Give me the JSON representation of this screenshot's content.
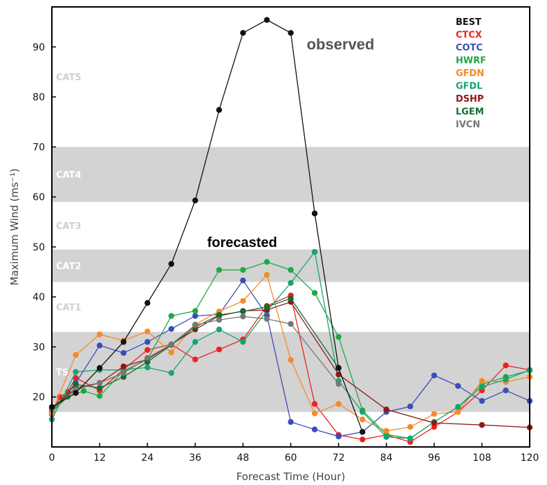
{
  "chart_data": {
    "type": "line",
    "xlabel": "Forecast Time (Hour)",
    "ylabel": "Maximum Wind (ms⁻¹)",
    "xlim": [
      0,
      120
    ],
    "ylim": [
      10,
      98
    ],
    "x_ticks": [
      0,
      12,
      24,
      36,
      48,
      60,
      72,
      84,
      96,
      108,
      120
    ],
    "y_ticks": [
      20,
      30,
      40,
      50,
      60,
      70,
      80,
      90
    ],
    "grid": false,
    "legend_position": "top-right",
    "bands": [
      {
        "label": "TS",
        "ymin": 17,
        "ymax": 33,
        "shaded": true
      },
      {
        "label": "CAT1",
        "ymin": 33,
        "ymax": 43,
        "shaded": false
      },
      {
        "label": "CAT2",
        "ymin": 43,
        "ymax": 49.5,
        "shaded": true
      },
      {
        "label": "CAT3",
        "ymin": 49.5,
        "ymax": 59,
        "shaded": false
      },
      {
        "label": "CAT4",
        "ymin": 59,
        "ymax": 70,
        "shaded": true
      },
      {
        "label": "CAT5",
        "ymin": 70,
        "ymax": 98,
        "shaded": false
      }
    ],
    "band_colors": {
      "shaded": "#d3d3d3",
      "label_on_shade": "#ffffff",
      "label_on_white": "#d0d0d0"
    },
    "annotations": [
      {
        "text": "observed",
        "x": 64,
        "y": 89.5,
        "size": 22,
        "color": "#555555"
      },
      {
        "text": "forecasted",
        "x": 39,
        "y": 50,
        "size": 20,
        "color": "#000000"
      }
    ],
    "series": [
      {
        "name": "BEST",
        "color": "#111111",
        "x": [
          0,
          6,
          12,
          18,
          24,
          30,
          36,
          42,
          48,
          54,
          60,
          66,
          72,
          78
        ],
        "y": [
          18,
          20.8,
          25.8,
          31,
          38.8,
          46.6,
          59.3,
          77.4,
          92.8,
          95.4,
          92.8,
          56.7,
          25.8,
          13
        ]
      },
      {
        "name": "CTCX",
        "color": "#ee2222",
        "x": [
          0,
          2,
          4,
          6,
          12,
          18,
          24,
          30,
          36,
          42,
          48,
          54,
          60,
          66,
          72,
          78,
          84,
          90,
          96,
          102,
          108,
          114,
          120
        ],
        "y": [
          16.5,
          20,
          21,
          23.8,
          21.3,
          25.5,
          29.4,
          30.5,
          27.5,
          29.5,
          31.5,
          38.2,
          40.3,
          18.6,
          12.4,
          11.5,
          12.4,
          11,
          14,
          17,
          21.3,
          26.3,
          25.4
        ]
      },
      {
        "name": "COTC",
        "color": "#3b4db8",
        "x": [
          0,
          6,
          12,
          18,
          24,
          30,
          36,
          42,
          48,
          54,
          60,
          66,
          72,
          78,
          84,
          90,
          96,
          102,
          108,
          114,
          120
        ],
        "y": [
          17,
          22.8,
          30.3,
          28.8,
          31,
          33.6,
          36.2,
          36.5,
          43.3,
          36.3,
          15,
          13.5,
          12.1,
          13,
          17,
          18.1,
          24.3,
          22.2,
          19.2,
          21.3,
          19.2
        ]
      },
      {
        "name": "HWRF",
        "color": "#1fa846",
        "x": [
          0,
          4,
          8,
          12,
          18,
          24,
          30,
          36,
          42,
          48,
          54,
          60,
          66,
          72,
          78,
          84,
          90,
          96,
          102,
          108,
          114,
          120
        ],
        "y": [
          17,
          20,
          21.2,
          20.2,
          25.2,
          27.5,
          36.2,
          37.2,
          45.4,
          45.4,
          47,
          45.4,
          40.8,
          32,
          17.3,
          12.5,
          11.7,
          15,
          18,
          22.5,
          24,
          25.3
        ]
      },
      {
        "name": "GFDN",
        "color": "#f58a2a",
        "x": [
          0,
          6,
          12,
          18,
          24,
          30,
          36,
          42,
          48,
          54,
          60,
          66,
          72,
          78,
          84,
          90,
          96,
          102,
          108,
          114,
          120
        ],
        "y": [
          16.8,
          28.4,
          32.5,
          31.3,
          33.1,
          28.9,
          34.5,
          37.1,
          39.2,
          44.4,
          27.4,
          16.7,
          18.6,
          15.5,
          13.2,
          14,
          16.6,
          17,
          23.2,
          23,
          24
        ]
      },
      {
        "name": "GFDL",
        "color": "#17a56f",
        "x": [
          0,
          6,
          12,
          18,
          24,
          30,
          36,
          42,
          48,
          54,
          60,
          66,
          72,
          78,
          84,
          90,
          96,
          102,
          108,
          114,
          120
        ],
        "y": [
          15.5,
          25,
          25.4,
          25.4,
          25.9,
          24.8,
          31,
          33.5,
          31,
          37.2,
          42.8,
          49,
          23.2,
          17,
          12,
          11.7,
          15,
          18,
          22,
          23.5,
          25.4
        ]
      },
      {
        "name": "DSHP",
        "color": "#8b1a1a",
        "x": [
          0,
          6,
          12,
          18,
          24,
          30,
          36,
          42,
          48,
          54,
          60,
          72,
          84,
          96,
          108,
          120
        ],
        "y": [
          17.5,
          21.8,
          22.8,
          26.1,
          27.5,
          30.5,
          33.5,
          36.2,
          37.2,
          37.4,
          39,
          24.5,
          17.5,
          14.8,
          14.4,
          13.9
        ]
      },
      {
        "name": "LGEM",
        "color": "#116d2d",
        "x": [
          0,
          6,
          12,
          18,
          24,
          30,
          36,
          42,
          48,
          54,
          60,
          72
        ],
        "y": [
          17.5,
          22.5,
          21.8,
          24,
          27,
          30.4,
          34,
          36.4,
          37.1,
          38,
          39.7,
          25.8
        ]
      },
      {
        "name": "IVCN",
        "color": "#777777",
        "x": [
          0,
          6,
          12,
          18,
          24,
          30,
          36,
          42,
          48,
          54,
          60,
          72
        ],
        "y": [
          17.4,
          21.5,
          22.8,
          24.8,
          27.8,
          30.5,
          34.4,
          35.4,
          36.1,
          35.6,
          34.6,
          22.6
        ]
      }
    ]
  }
}
